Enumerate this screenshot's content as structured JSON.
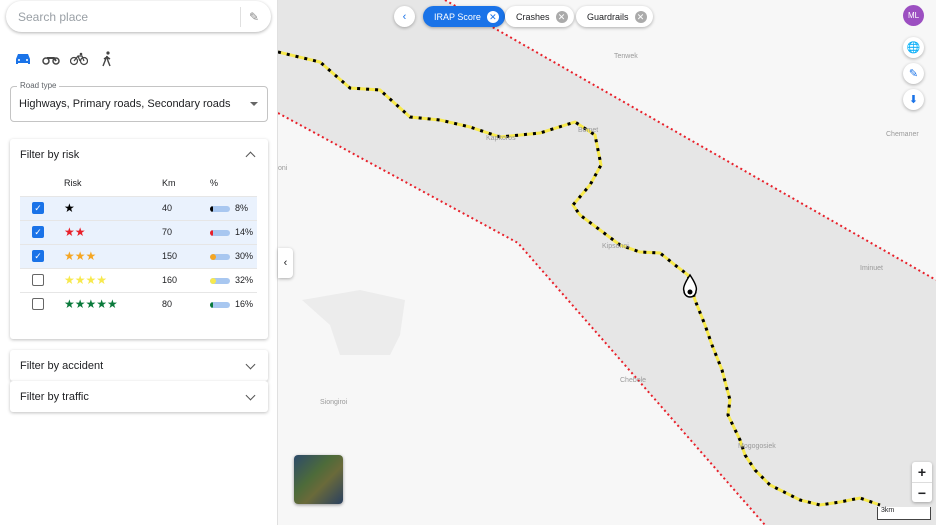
{
  "search": {
    "placeholder": "Search place"
  },
  "modes": [
    "car",
    "motorcycle",
    "bicycle",
    "pedestrian"
  ],
  "road_type": {
    "label": "Road type",
    "value": "Highways, Primary roads, Secondary roads"
  },
  "risk_filter": {
    "title": "Filter by risk",
    "columns": [
      "Risk",
      "Km",
      "%"
    ],
    "rows": [
      {
        "checked": true,
        "stars": "★",
        "color": "#000000",
        "km": "40",
        "pct": "8%",
        "pct_value": 8
      },
      {
        "checked": true,
        "stars": "★★",
        "color": "#e8202a",
        "km": "70",
        "pct": "14%",
        "pct_value": 14
      },
      {
        "checked": true,
        "stars": "★★★",
        "color": "#f5a623",
        "km": "150",
        "pct": "30%",
        "pct_value": 30
      },
      {
        "checked": false,
        "stars": "★★★★",
        "color": "#f7e94d",
        "km": "160",
        "pct": "32%",
        "pct_value": 32
      },
      {
        "checked": false,
        "stars": "★★★★★",
        "color": "#0a7a3b",
        "km": "80",
        "pct": "16%",
        "pct_value": 16
      }
    ]
  },
  "accident_filter": {
    "title": "Filter by accident"
  },
  "traffic_filter": {
    "title": "Filter by traffic"
  },
  "chips": [
    "IRAP Score",
    "Crashes",
    "Guardrails"
  ],
  "avatar": "ML",
  "map_labels": [
    "Tenwek",
    "Bomet",
    "Kapkoros",
    "Chemaner",
    "Kipsonoi",
    "Iminuet",
    "Siongiroi",
    "Mogogosiek",
    "Chebole",
    "oni"
  ],
  "scale": "3km",
  "zoom": {
    "in": "+",
    "out": "−"
  }
}
